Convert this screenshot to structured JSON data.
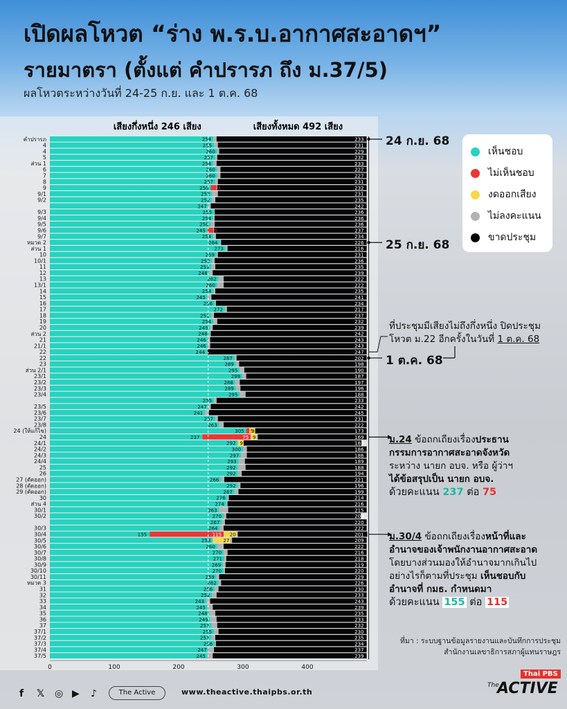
{
  "header": {
    "title_line1": "เปิดผลโหวต “ร่าง พ.ร.บ.อากาศสะอาดฯ”",
    "title_line2": "รายมาตรา (ตั้งแต่ คำปรารภ ถึง ม.37/5)",
    "subtitle": "ผลโหวตระหว่างวันที่ 24-25 ก.ย. และ 1 ต.ค. 68"
  },
  "chart_labels": {
    "half_label": "เสียงกึ่งหนึ่ง 246 เสียง",
    "total_label": "เสียงทั้งหมด 492 เสียง"
  },
  "legend": {
    "agree": "เห็นชอบ",
    "disagree": "ไม่เห็นชอบ",
    "abstain": "งดออกเสียง",
    "novote": "ไม่ลงคะแนน",
    "absent": "ขาดประชุม"
  },
  "colors": {
    "agree": "#26d3bf",
    "disagree": "#ec3535",
    "abstain": "#f4d84a",
    "novote": "#b3b3b3",
    "absent": "#050505"
  },
  "dates": {
    "d1": "24 ก.ย. 68",
    "d2": "25 ก.ย. 68",
    "d3": "1 ต.ค. 68"
  },
  "notes": {
    "quorum_line1": "ที่ประชุมมีเสียงไม่ถึงกึ่งหนึ่ง ปิดประชุม",
    "quorum_line2": "โหวต ม.22 อีกครั้งในวันที่",
    "quorum_date": "1 ต.ค. 68",
    "n24_title": "ม.24",
    "n24_a": "ข้อถกเถียงเรื่อง",
    "n24_b": "ประธาน",
    "n24_c": "กรรมการอากาศสะอาดจังหวัด",
    "n24_d": "ระหว่าง นายก อบจ. หรือ ผู้ว่าฯ",
    "n24_e": "ได้ข้อสรุปเป็น นายก อบจ.",
    "n24_f": "ด้วยคะแนน",
    "n24_v1": "237",
    "n24_mid": "ต่อ",
    "n24_v2": "75",
    "n304_title": "ม.30/4",
    "n304_a": "ข้อถกเถียงเรื่อง",
    "n304_b": "หน้าที่และ",
    "n304_c": "อำนาจของเจ้าพนักงานอากาศสะอาด",
    "n304_d": "โดยบางส่วนมองให้อำนาจมากเกินไป",
    "n304_e": "อย่างไรก็ตามที่ประชุม",
    "n304_f": "เห็นชอบกับ",
    "n304_g": "อำนาจที่ กมธ. กำหนดมา",
    "n304_h": "ด้วยคะแนน",
    "n304_v1": "155",
    "n304_mid": "ต่อ",
    "n304_v2": "115"
  },
  "source": {
    "line1": "ที่มา : ระบบฐานข้อมูลรายงานและบันทึกการประชุม",
    "line2": "สำนักงานเลขาธิการสภาผู้แทนราษฎร"
  },
  "footer": {
    "pill": "The Active",
    "url": "www.theactive.thaipbs.or.th",
    "logo_top": "Thai PBS",
    "logo_main": "ACTIVE",
    "logo_the": "The"
  },
  "chart_data": {
    "type": "bar",
    "orientation": "horizontal",
    "stacked": true,
    "xlim": [
      0,
      492
    ],
    "xticks": [
      0,
      100,
      200,
      300,
      400
    ],
    "reference_lines": [
      246,
      492
    ],
    "categories": [
      "คำปรารภ",
      "4",
      "4",
      "5",
      "ส่วน 1",
      "6",
      "7",
      "8",
      "9",
      "9/1",
      "9/2",
      "",
      "9/3",
      "9/4",
      "9/5",
      "9/6",
      "9/7",
      "หมวด 2",
      "ส่วน 1",
      "10",
      "10/1",
      "11",
      "12",
      "13",
      "13/1",
      "14",
      "15",
      "16",
      "17",
      "18",
      "19",
      "20",
      "ส่วน 2",
      "21",
      "21/1",
      "22",
      "22",
      "23",
      "ส่วน 2/1",
      "23/1",
      "23/2",
      "23/3",
      "23/4",
      "",
      "23/5",
      "23/6",
      "23/7",
      "23/8",
      "24 (ให้แก้ไข)",
      "24",
      "24/1",
      "24/2",
      "24/3",
      "24/4",
      "25",
      "26",
      "27 (ตัดออก)",
      "28 (ตัดออก)",
      "29 (ตัดออก)",
      "30",
      "ส่วน 4",
      "30/1",
      "30/2",
      "",
      "30/3",
      "30/4",
      "30/5",
      "30/6",
      "30/7",
      "30/8",
      "30/9",
      "30/10",
      "30/11",
      "หมวด 3",
      "31",
      "32",
      "33",
      "34",
      "35",
      "36",
      "37",
      "37/1",
      "37/2",
      "37/3",
      "37/4",
      "37/5"
    ],
    "series": [
      {
        "name": "เห็นชอบ",
        "values": [
          254,
          255,
          260,
          257,
          254,
          260,
          260,
          257,
          250,
          252,
          252,
          247,
          255,
          254,
          250,
          245,
          254,
          264,
          273,
          259,
          252,
          251,
          248,
          262,
          260,
          254,
          245,
          256,
          272,
          251,
          254,
          249,
          248,
          246,
          246,
          244,
          287,
          289,
          295,
          299,
          288,
          289,
          295,
          255,
          247,
          241,
          257,
          263,
          305,
          237,
          292,
          300,
          297,
          293,
          292,
          292,
          266,
          292,
          287,
          276,
          274,
          263,
          270,
          267,
          264,
          155,
          253,
          260,
          270,
          271,
          269,
          270,
          259,
          262,
          256,
          252,
          243,
          245,
          248,
          249,
          251,
          255,
          251,
          256,
          247,
          245
        ]
      },
      {
        "name": "ไม่เห็นชอบ",
        "values": [
          0,
          0,
          0,
          0,
          0,
          0,
          0,
          0,
          9,
          0,
          0,
          0,
          0,
          0,
          0,
          9,
          0,
          0,
          0,
          0,
          0,
          0,
          0,
          0,
          0,
          0,
          0,
          0,
          0,
          0,
          0,
          0,
          0,
          0,
          0,
          0,
          0,
          0,
          0,
          0,
          0,
          0,
          0,
          0,
          0,
          0,
          0,
          0,
          5,
          75,
          0,
          0,
          0,
          0,
          0,
          0,
          0,
          0,
          0,
          0,
          0,
          0,
          0,
          0,
          0,
          115,
          0,
          0,
          0,
          0,
          0,
          0,
          0,
          0,
          0,
          0,
          0,
          0,
          0,
          0,
          0,
          0,
          0,
          0,
          0,
          0
        ]
      },
      {
        "name": "งดออกเสียง",
        "values": [
          0,
          0,
          0,
          0,
          0,
          0,
          0,
          0,
          0,
          0,
          0,
          0,
          0,
          0,
          0,
          0,
          0,
          0,
          0,
          0,
          0,
          0,
          0,
          0,
          0,
          0,
          0,
          0,
          0,
          0,
          0,
          0,
          0,
          0,
          0,
          0,
          0,
          0,
          0,
          0,
          0,
          0,
          0,
          0,
          0,
          0,
          0,
          0,
          9,
          9,
          9,
          0,
          0,
          0,
          0,
          0,
          0,
          0,
          0,
          0,
          0,
          0,
          0,
          0,
          0,
          20,
          27,
          0,
          0,
          0,
          0,
          0,
          0,
          0,
          0,
          0,
          0,
          0,
          0,
          0,
          0,
          0,
          0,
          0,
          0,
          0
        ]
      },
      {
        "name": "ไม่ลงคะแนน",
        "values": [
          5,
          6,
          3,
          3,
          5,
          5,
          5,
          4,
          1,
          9,
          5,
          3,
          1,
          2,
          6,
          1,
          4,
          2,
          3,
          2,
          4,
          6,
          5,
          8,
          10,
          3,
          6,
          2,
          3,
          4,
          6,
          4,
          2,
          3,
          3,
          1,
          3,
          5,
          7,
          6,
          7,
          7,
          9,
          4,
          3,
          6,
          4,
          7,
          0,
          2,
          0,
          6,
          9,
          10,
          12,
          6,
          5,
          4,
          6,
          2,
          2,
          14,
          4,
          5,
          6,
          2,
          3,
          10,
          6,
          3,
          4,
          2,
          4,
          4,
          6,
          7,
          6,
          8,
          9,
          10,
          9,
          7,
          6,
          2,
          8,
          8
        ]
      },
      {
        "name": "ขาดประชุม",
        "values": [
          233,
          231,
          229,
          232,
          233,
          227,
          227,
          231,
          232,
          231,
          235,
          242,
          236,
          236,
          236,
          237,
          234,
          226,
          216,
          231,
          236,
          235,
          239,
          222,
          222,
          235,
          241,
          234,
          217,
          237,
          232,
          239,
          242,
          243,
          243,
          247,
          202,
          198,
          190,
          187,
          197,
          196,
          188,
          233,
          242,
          245,
          231,
          222,
          173,
          169,
          183,
          186,
          186,
          189,
          188,
          194,
          221,
          196,
          199,
          214,
          216,
          215,
          209,
          220,
          222,
          201,
          209,
          222,
          216,
          218,
          219,
          220,
          229,
          226,
          230,
          233,
          243,
          239,
          235,
          233,
          232,
          230,
          235,
          234,
          237,
          239
        ]
      }
    ],
    "annotations": [
      {
        "row": 0,
        "text": "24 ก.ย. 68"
      },
      {
        "row": 17,
        "text": "25 ก.ย. 68"
      },
      {
        "row": 36,
        "text": "1 ต.ค. 68"
      }
    ]
  }
}
